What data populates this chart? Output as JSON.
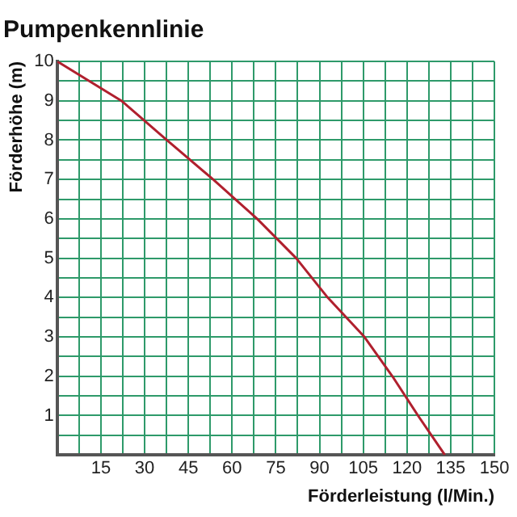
{
  "chart_data": {
    "type": "line",
    "title": "Pumpenkennlinie",
    "xlabel": "Förderleistung (l/Min.)",
    "ylabel": "Förderhöhe (m)",
    "series": [
      {
        "color": "#b0202e",
        "x": [
          0,
          22,
          37.6,
          53.5,
          68.6,
          82,
          92.8,
          105.4,
          115,
          123.8,
          133
        ],
        "values": [
          10,
          9,
          8,
          7,
          6,
          5,
          4,
          3,
          2,
          1,
          0
        ]
      }
    ],
    "xlim": [
      0,
      150
    ],
    "ylim": [
      0,
      10
    ],
    "xticks": [
      {
        "value": 0,
        "label": null
      },
      {
        "value": 7.5,
        "label": null
      },
      15,
      {
        "value": 22.5,
        "label": null
      },
      30,
      {
        "value": 37.5,
        "label": null
      },
      45,
      {
        "value": 52.5,
        "label": null
      },
      60,
      {
        "value": 67.5,
        "label": null
      },
      75,
      {
        "value": 82.5,
        "label": null
      },
      90,
      {
        "value": 97.5,
        "label": null
      },
      105,
      {
        "value": 112.5,
        "label": null
      },
      120,
      {
        "value": 127.5,
        "label": null
      },
      135,
      {
        "value": 142.5,
        "label": null
      },
      150
    ],
    "yticks": [
      {
        "value": 0,
        "label": null
      },
      {
        "value": 0.5,
        "label": null
      },
      1,
      {
        "value": 1.5,
        "label": null
      },
      2,
      {
        "value": 2.5,
        "label": null
      },
      3,
      {
        "value": 3.5,
        "label": null
      },
      4,
      {
        "value": 4.5,
        "label": null
      },
      5,
      {
        "value": 5.5,
        "label": null
      },
      6,
      {
        "value": 6.5,
        "label": null
      },
      7,
      {
        "value": 7.5,
        "label": null
      },
      8,
      {
        "value": 8.5,
        "label": null
      },
      9,
      {
        "value": 9.5,
        "label": null
      },
      10
    ],
    "grid": true,
    "marker": "none",
    "line_style": "solid",
    "legend": false
  }
}
